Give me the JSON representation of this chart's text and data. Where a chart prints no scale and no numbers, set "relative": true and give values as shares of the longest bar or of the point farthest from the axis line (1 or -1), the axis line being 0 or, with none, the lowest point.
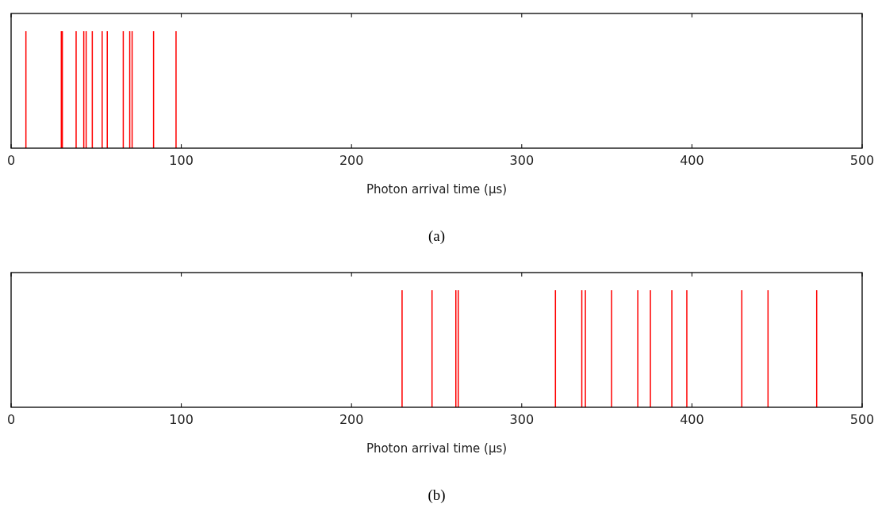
{
  "chart_data": [
    {
      "type": "bar",
      "relative": true,
      "color": "#ff0000",
      "x": [
        8.7,
        29.5,
        30.1,
        38.2,
        42.7,
        44.1,
        47.7,
        53.5,
        56.5,
        65.9,
        69.7,
        71.1,
        83.7,
        96.9
      ],
      "values": [
        1,
        1,
        1,
        1,
        1,
        1,
        1,
        1,
        1,
        1,
        1,
        1,
        1,
        1
      ],
      "xlim": [
        0,
        500
      ],
      "xticks": [
        0,
        100,
        200,
        300,
        400,
        500
      ],
      "xlabel": "Photon arrival time (μs)",
      "tick_labels": "x",
      "annotations": [
        "(a)"
      ]
    },
    {
      "type": "bar",
      "relative": true,
      "color": "#ff0000",
      "x": [
        229.7,
        247.3,
        261.3,
        262.7,
        319.8,
        335.3,
        337.4,
        352.8,
        368.2,
        375.6,
        388.2,
        397,
        429.3,
        444.7,
        473.3
      ],
      "values": [
        1,
        1,
        1,
        1,
        1,
        1,
        1,
        1,
        1,
        1,
        1,
        1,
        1,
        1,
        1
      ],
      "xlim": [
        0,
        500
      ],
      "xticks": [
        0,
        100,
        200,
        300,
        400,
        500
      ],
      "xlabel": "Photon arrival time (μs)",
      "tick_labels": "x",
      "annotations": [
        "(b)"
      ]
    }
  ]
}
